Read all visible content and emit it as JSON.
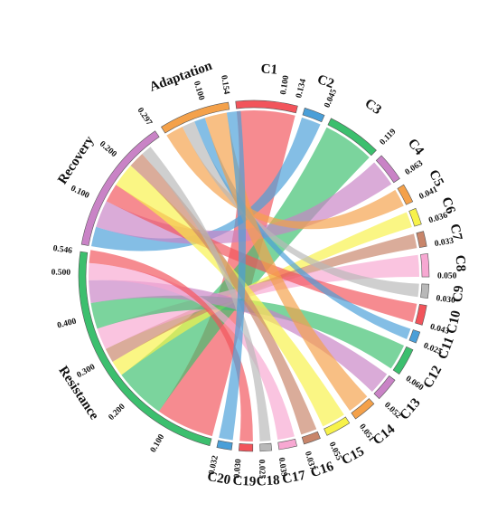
{
  "chart_data": {
    "type": "chord",
    "groups": [
      {
        "name": "Adaptation",
        "total": 0.154,
        "ticks": [
          0.1
        ],
        "color": "#f4a14a"
      },
      {
        "name": "Recovery",
        "total": 0.297,
        "ticks": [
          0.1,
          0.2
        ],
        "color": "#c983c6"
      },
      {
        "name": "Resistance",
        "total": 0.546,
        "ticks": [
          0.1,
          0.2,
          0.3,
          0.4,
          0.5
        ],
        "color": "#3cbf6e"
      }
    ],
    "criteria": [
      {
        "name": "C1",
        "value": 0.134,
        "ticks": [
          0.1
        ],
        "color": "#f2545b",
        "target": "Resistance"
      },
      {
        "name": "C2",
        "value": 0.045,
        "color": "#4a9fd8",
        "target": "Recovery"
      },
      {
        "name": "C3",
        "value": 0.119,
        "color": "#3cbf6e",
        "target": "Resistance"
      },
      {
        "name": "C4",
        "value": 0.063,
        "color": "#c983c6",
        "target": "Recovery"
      },
      {
        "name": "C5",
        "value": 0.041,
        "color": "#f4a14a",
        "target": "Adaptation"
      },
      {
        "name": "C6",
        "value": 0.036,
        "color": "#f7f24a",
        "target": "Resistance"
      },
      {
        "name": "C7",
        "value": 0.033,
        "color": "#c8856a",
        "target": "Resistance"
      },
      {
        "name": "C8",
        "value": 0.05,
        "color": "#f7a8d2",
        "target": "Resistance"
      },
      {
        "name": "C9",
        "value": 0.03,
        "color": "#b8b8b8",
        "target": "Adaptation"
      },
      {
        "name": "C10",
        "value": 0.043,
        "color": "#f2545b",
        "target": "Recovery"
      },
      {
        "name": "C11",
        "value": 0.025,
        "color": "#4a9fd8",
        "target": "Adaptation"
      },
      {
        "name": "C12",
        "value": 0.06,
        "color": "#3cbf6e",
        "target": "Resistance"
      },
      {
        "name": "C13",
        "value": 0.052,
        "color": "#c983c6",
        "target": "Resistance"
      },
      {
        "name": "C14",
        "value": 0.051,
        "color": "#f4a14a",
        "target": "Adaptation"
      },
      {
        "name": "C15",
        "value": 0.055,
        "color": "#f7f24a",
        "target": "Recovery"
      },
      {
        "name": "C16",
        "value": 0.037,
        "color": "#c8856a",
        "target": "Recovery"
      },
      {
        "name": "C17",
        "value": 0.039,
        "color": "#f7a8d2",
        "target": "Resistance"
      },
      {
        "name": "C18",
        "value": 0.025,
        "color": "#b8b8b8",
        "target": "Recovery"
      },
      {
        "name": "C19",
        "value": 0.03,
        "color": "#f2545b",
        "target": "Resistance"
      },
      {
        "name": "C20",
        "value": 0.032,
        "color": "#4a9fd8",
        "target": "Adaptation"
      }
    ]
  }
}
